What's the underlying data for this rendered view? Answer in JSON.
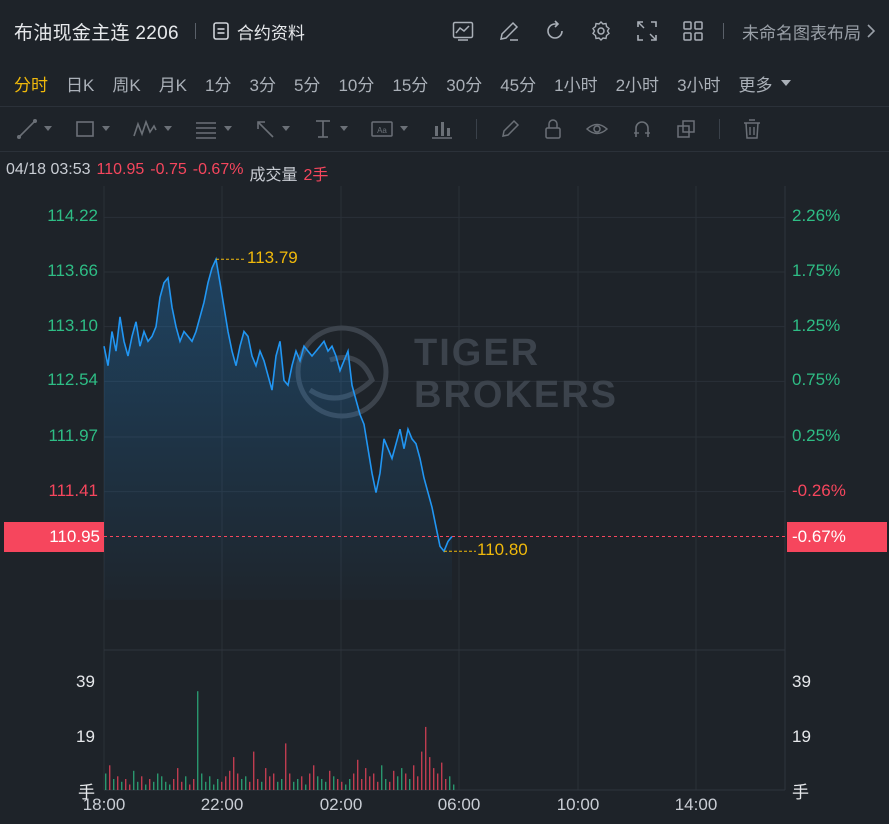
{
  "header": {
    "title": "布油现金主连 2206",
    "contract_info_label": "合约资料",
    "layout_label": "未命名图表布局"
  },
  "periods": [
    "分时",
    "日K",
    "周K",
    "月K",
    "1分",
    "3分",
    "5分",
    "10分",
    "15分",
    "30分",
    "45分",
    "1小时",
    "2小时",
    "3小时"
  ],
  "active_period": "分时",
  "more_label": "更多",
  "info": {
    "datetime": "04/18 03:53",
    "price": "110.95",
    "change": "-0.75",
    "change_pct": "-0.67%",
    "volume_label": "成交量",
    "volume_value": "2手"
  },
  "watermark": {
    "line1": "TIGER",
    "line2": "BROKERS"
  },
  "colors": {
    "background": "#1e2329",
    "line": "#2196f3",
    "up": "#2ebd85",
    "down": "#f6465d",
    "highlight": "#f0b90b"
  },
  "chart_data": {
    "type": "line",
    "y_left_ticks": [
      "114.22",
      "113.66",
      "113.10",
      "112.54",
      "111.97",
      "111.41"
    ],
    "y_right_ticks": [
      "2.26%",
      "1.75%",
      "1.25%",
      "0.75%",
      "0.25%",
      "-0.26%"
    ],
    "current_price_label": "110.95",
    "current_pct_label": "-0.67%",
    "high_label": "113.79",
    "low_label": "110.80",
    "x_ticks": [
      "18:00",
      "22:00",
      "02:00",
      "06:00",
      "10:00",
      "14:00"
    ],
    "ylim": [
      110.3,
      114.5
    ],
    "series": [
      {
        "values": [
          112.9,
          112.7,
          113.05,
          112.85,
          113.2,
          112.95,
          112.8,
          113.0,
          113.15,
          112.9,
          113.05,
          112.95,
          113.0,
          113.1,
          113.4,
          113.55,
          113.6,
          113.3,
          113.1,
          112.95,
          113.05,
          113.0,
          112.95,
          113.05,
          113.2,
          113.35,
          113.55,
          113.7,
          113.79,
          113.55,
          113.3,
          113.05,
          112.85,
          112.7,
          112.9,
          113.05,
          113.0,
          112.8,
          112.7,
          112.85,
          112.75,
          112.6,
          112.45,
          112.8,
          112.95,
          112.55,
          112.5,
          112.7,
          112.85,
          112.75,
          112.9,
          112.85,
          112.8,
          112.85,
          112.9,
          112.95,
          112.85,
          112.9,
          112.8,
          112.65,
          112.75,
          112.85,
          112.5,
          112.35,
          112.2,
          112.1,
          111.85,
          111.6,
          111.4,
          111.6,
          111.95,
          111.85,
          111.75,
          111.9,
          112.05,
          111.85,
          112.05,
          111.95,
          111.9,
          111.75,
          111.55,
          111.4,
          111.25,
          111.05,
          110.85,
          110.8,
          110.9,
          110.95
        ]
      }
    ],
    "volume_ticks": [
      "39",
      "19"
    ],
    "volume_unit": "手",
    "volume_max": 39,
    "volume": [
      6,
      9,
      4,
      5,
      3,
      4,
      2,
      7,
      3,
      5,
      2,
      4,
      3,
      6,
      5,
      3,
      2,
      4,
      8,
      3,
      5,
      2,
      4,
      36,
      6,
      3,
      5,
      2,
      4,
      3,
      5,
      7,
      12,
      6,
      4,
      5,
      3,
      14,
      4,
      3,
      8,
      5,
      6,
      3,
      4,
      17,
      6,
      3,
      4,
      5,
      2,
      6,
      9,
      5,
      4,
      3,
      7,
      5,
      4,
      3,
      2,
      4,
      6,
      11,
      4,
      8,
      5,
      6,
      3,
      9,
      4,
      3,
      7,
      5,
      8,
      6,
      4,
      9,
      5,
      14,
      23,
      12,
      8,
      6,
      10,
      4,
      5,
      2
    ]
  }
}
